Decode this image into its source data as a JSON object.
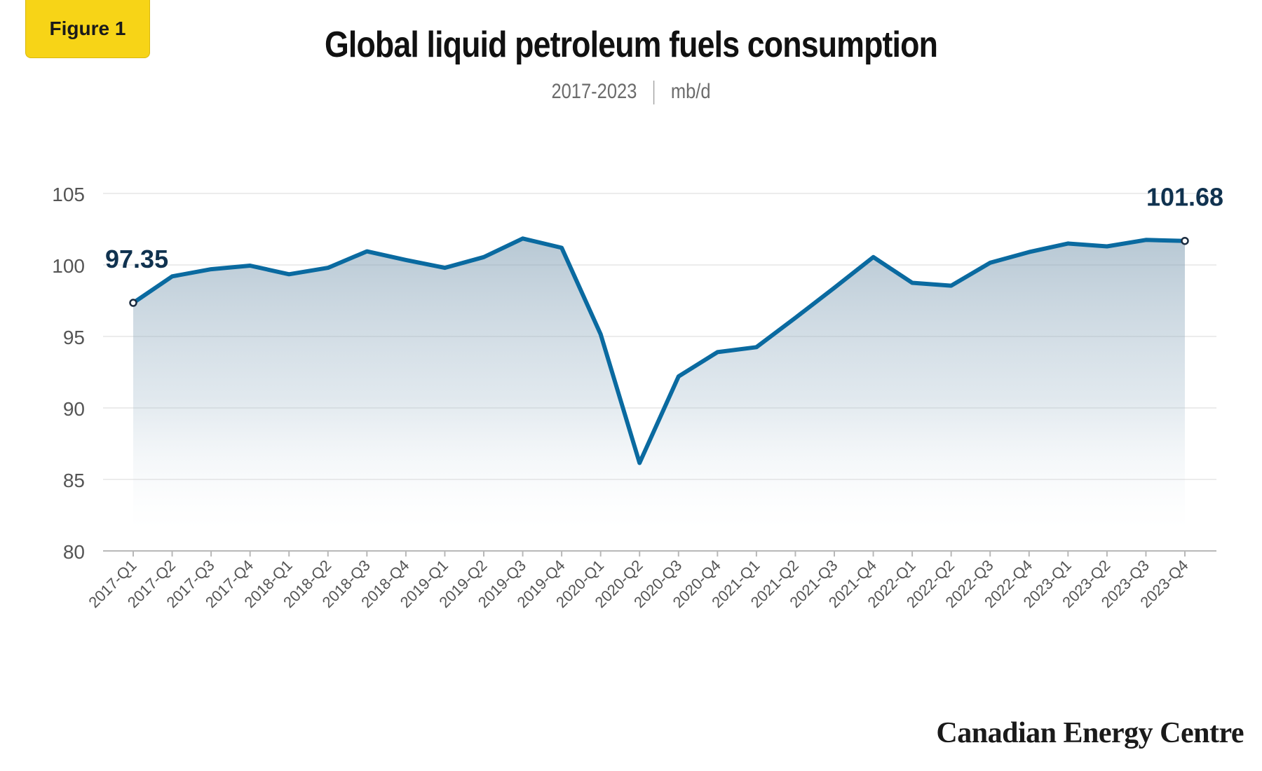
{
  "badge": "Figure 1",
  "chart_data": {
    "type": "area",
    "title": "Global liquid petroleum fuels consumption",
    "subtitle_range": "2017-2023",
    "subtitle_unit": "mb/d",
    "xlabel": "",
    "ylabel": "",
    "ylim": [
      80,
      105
    ],
    "yticks": [
      80,
      85,
      90,
      95,
      100,
      105
    ],
    "grid": true,
    "legend": "none",
    "line_color": "#0a6aa0",
    "categories": [
      "2017-Q1",
      "2017-Q2",
      "2017-Q3",
      "2017-Q4",
      "2018-Q1",
      "2018-Q2",
      "2018-Q3",
      "2018-Q4",
      "2019-Q1",
      "2019-Q2",
      "2019-Q3",
      "2019-Q4",
      "2020-Q1",
      "2020-Q2",
      "2020-Q3",
      "2020-Q4",
      "2021-Q1",
      "2021-Q2",
      "2021-Q3",
      "2021-Q4",
      "2022-Q1",
      "2022-Q2",
      "2022-Q3",
      "2022-Q4",
      "2023-Q1",
      "2023-Q2",
      "2023-Q3",
      "2023-Q4"
    ],
    "series": [
      {
        "values": [
          97.35,
          99.2,
          99.7,
          99.95,
          99.35,
          99.8,
          100.95,
          100.35,
          99.8,
          100.55,
          101.85,
          101.2,
          95.15,
          86.15,
          92.2,
          93.9,
          94.25,
          96.3,
          98.4,
          100.55,
          98.75,
          98.55,
          100.15,
          100.9,
          101.5,
          101.3,
          101.75,
          101.68
        ]
      }
    ],
    "annotations": [
      {
        "category": "2017-Q1",
        "label": "97.35"
      },
      {
        "category": "2023-Q4",
        "label": "101.68"
      }
    ]
  },
  "footer": {
    "brand": "Canadian Energy Centre"
  }
}
